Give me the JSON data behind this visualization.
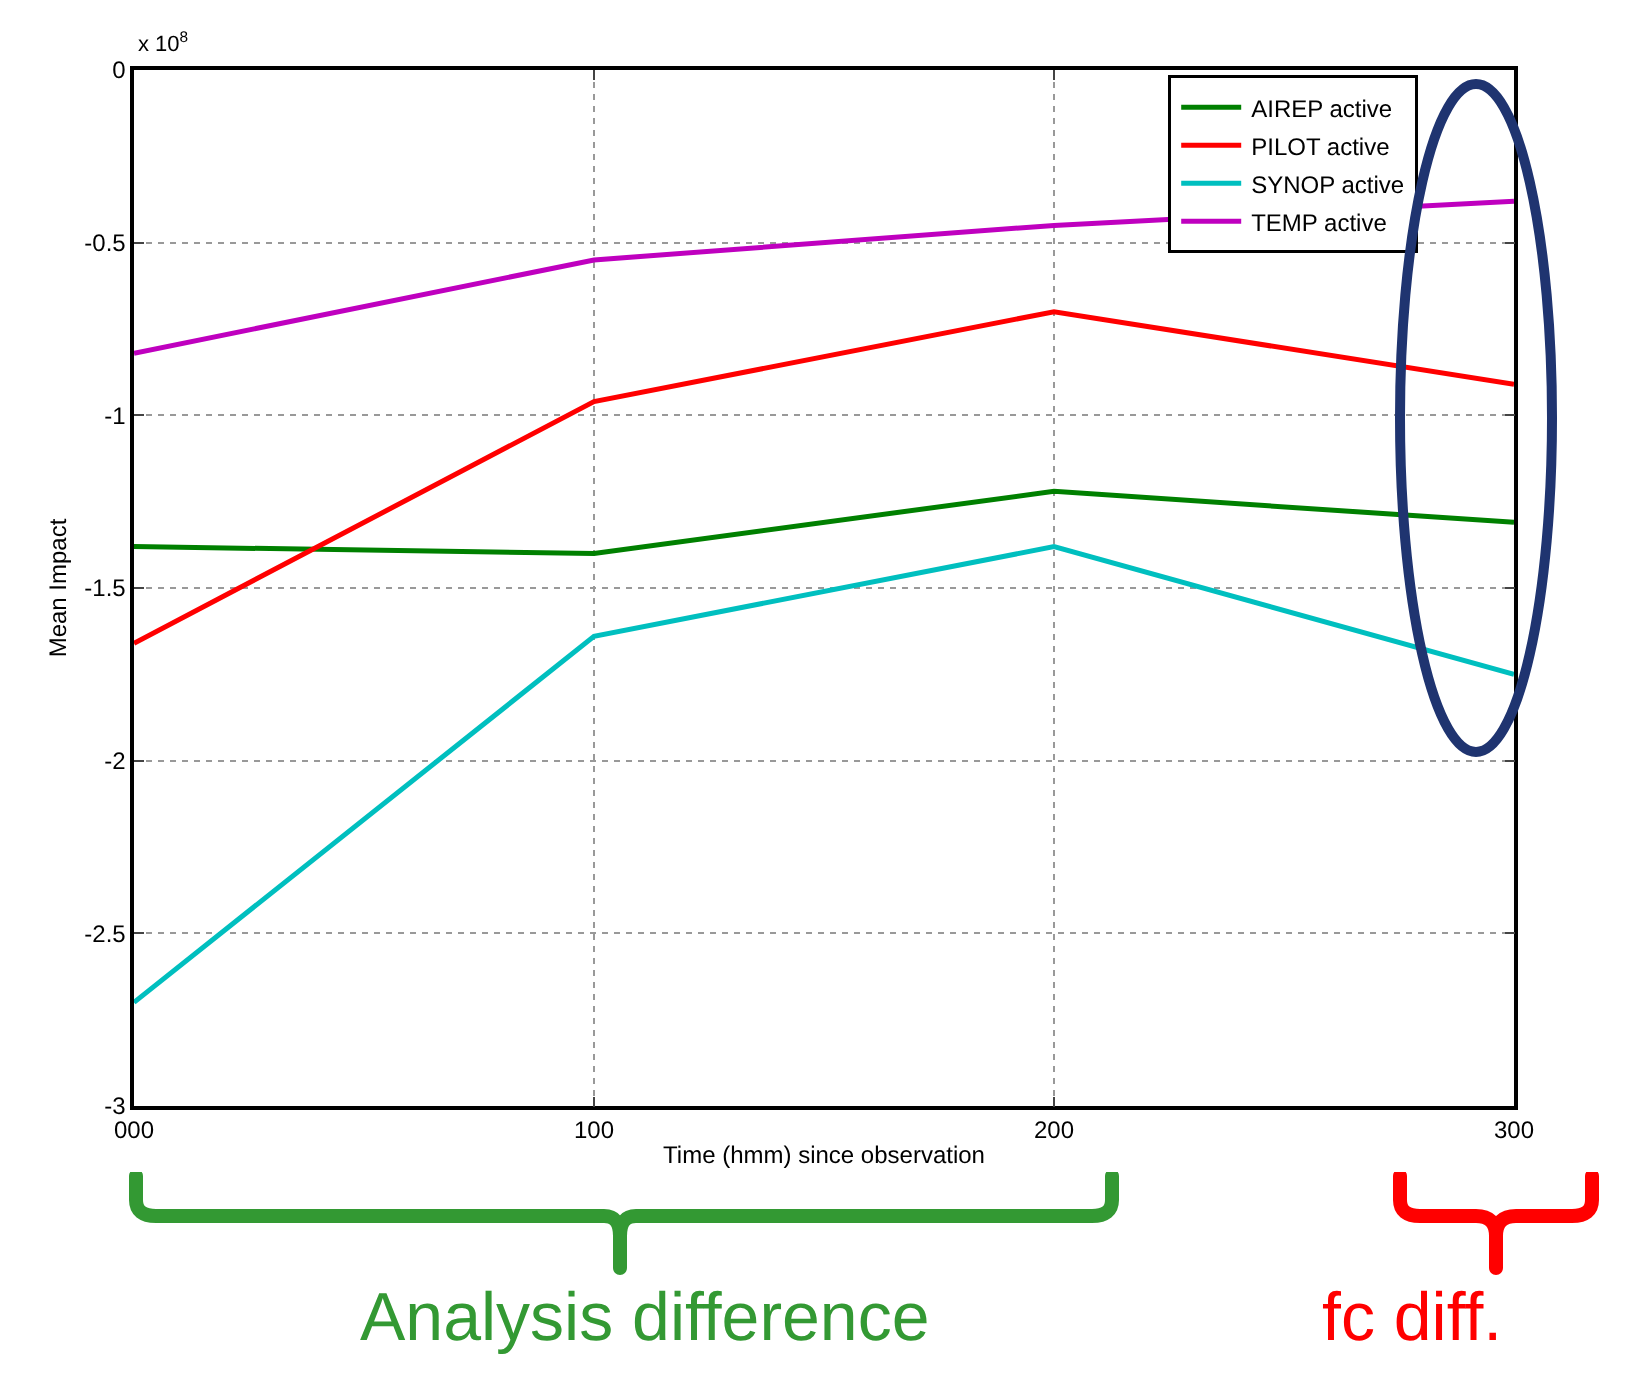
{
  "chart_data": {
    "type": "line",
    "xlabel": "Time (hmm) since observation",
    "ylabel": "Mean Impact",
    "x": [
      0,
      100,
      200,
      300
    ],
    "series": [
      {
        "name": "AIREP active",
        "color": "#008000",
        "values": [
          -1.38,
          -1.4,
          -1.22,
          -1.31
        ]
      },
      {
        "name": "PILOT active",
        "color": "#ff0000",
        "values": [
          -1.66,
          -0.96,
          -0.7,
          -0.91
        ]
      },
      {
        "name": "SYNOP active",
        "color": "#00bfbf",
        "values": [
          -2.7,
          -1.64,
          -1.38,
          -1.75
        ]
      },
      {
        "name": "TEMP active",
        "color": "#bf00bf",
        "values": [
          -0.82,
          -0.55,
          -0.45,
          -0.38
        ]
      }
    ],
    "xlim": [
      0,
      300
    ],
    "xticks": [
      {
        "value": 0,
        "label": "000"
      },
      100,
      200,
      300
    ],
    "ylim": [
      -3,
      0
    ],
    "yticks": [
      -3,
      -2.5,
      -2,
      -1.5,
      -1,
      -0.5,
      0
    ],
    "grid": true,
    "legend": "top right",
    "line_style": "solid",
    "marker": "none",
    "annotations": [
      "x 10$^{8}$",
      "Analysis difference",
      "fc diff."
    ]
  }
}
